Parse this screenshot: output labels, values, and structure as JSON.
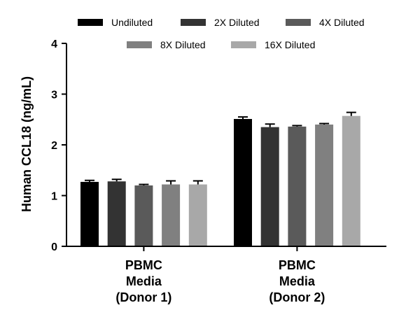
{
  "chart_data": {
    "type": "bar",
    "title": "",
    "xlabel": "",
    "ylabel": "Human CCL18 (ng/mL)",
    "ylim": [
      0,
      4
    ],
    "yticks": [
      0,
      1,
      2,
      3,
      4
    ],
    "grid": false,
    "legend_position": "top",
    "categories": [
      [
        "PBMC",
        "Media",
        "(Donor 1)"
      ],
      [
        "PBMC",
        "Media",
        "(Donor 2)"
      ]
    ],
    "series": [
      {
        "name": "Undiluted",
        "color": "#000000",
        "values": [
          1.27,
          2.51
        ],
        "errors": [
          0.03,
          0.04
        ]
      },
      {
        "name": "2X Diluted",
        "color": "#333333",
        "values": [
          1.28,
          2.35
        ],
        "errors": [
          0.04,
          0.06
        ]
      },
      {
        "name": "4X Diluted",
        "color": "#5a5a5a",
        "values": [
          1.2,
          2.36
        ],
        "errors": [
          0.02,
          0.02
        ]
      },
      {
        "name": "8X Diluted",
        "color": "#808080",
        "values": [
          1.22,
          2.4
        ],
        "errors": [
          0.07,
          0.02
        ]
      },
      {
        "name": "16X Diluted",
        "color": "#a8a8a8",
        "values": [
          1.22,
          2.57
        ],
        "errors": [
          0.07,
          0.07
        ]
      }
    ]
  }
}
